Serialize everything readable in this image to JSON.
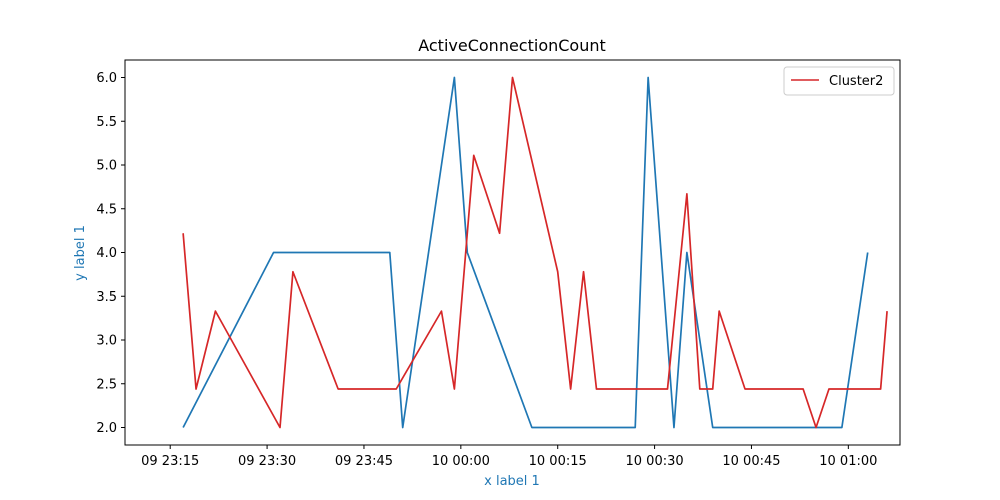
{
  "chart_data": {
    "type": "line",
    "title": "ActiveConnectionCount",
    "xlabel": "x label 1",
    "ylabel": "y label 1",
    "label_color": "#1f77b4",
    "xlim": [
      "09 23:08",
      "10 01:08"
    ],
    "ylim": [
      1.8,
      6.2
    ],
    "x_ticks": [
      {
        "value": "09 23:15",
        "label": "09 23:15"
      },
      {
        "value": "09 23:30",
        "label": "09 23:30"
      },
      {
        "value": "09 23:45",
        "label": "09 23:45"
      },
      {
        "value": "10 00:00",
        "label": "10 00:00"
      },
      {
        "value": "10 00:15",
        "label": "10 00:15"
      },
      {
        "value": "10 00:30",
        "label": "10 00:30"
      },
      {
        "value": "10 00:45",
        "label": "10 00:45"
      },
      {
        "value": "10 01:00",
        "label": "10 01:00"
      }
    ],
    "y_ticks": [
      {
        "value": 2.0,
        "label": "2.0"
      },
      {
        "value": 2.5,
        "label": "2.5"
      },
      {
        "value": 3.0,
        "label": "3.0"
      },
      {
        "value": 3.5,
        "label": "3.5"
      },
      {
        "value": 4.0,
        "label": "4.0"
      },
      {
        "value": 4.5,
        "label": "4.5"
      },
      {
        "value": 5.0,
        "label": "5.0"
      },
      {
        "value": 5.5,
        "label": "5.5"
      },
      {
        "value": 6.0,
        "label": "6.0"
      }
    ],
    "grid": false,
    "legend_position": "top-right",
    "series": [
      {
        "color": "#1f77b4",
        "in_legend": false,
        "points": [
          {
            "x": "09 23:17",
            "y": 2.0
          },
          {
            "x": "09 23:31",
            "y": 4.0
          },
          {
            "x": "09 23:49",
            "y": 4.0
          },
          {
            "x": "09 23:51",
            "y": 2.0
          },
          {
            "x": "09 23:59",
            "y": 6.0
          },
          {
            "x": "10 00:01",
            "y": 4.0
          },
          {
            "x": "10 00:11",
            "y": 2.0
          },
          {
            "x": "10 00:27",
            "y": 2.0
          },
          {
            "x": "10 00:29",
            "y": 6.0
          },
          {
            "x": "10 00:33",
            "y": 2.0
          },
          {
            "x": "10 00:35",
            "y": 4.0
          },
          {
            "x": "10 00:39",
            "y": 2.0
          },
          {
            "x": "10 00:59",
            "y": 2.0
          },
          {
            "x": "10 01:03",
            "y": 4.0
          }
        ]
      },
      {
        "name": "Cluster2",
        "color": "#d62728",
        "in_legend": true,
        "points": [
          {
            "x": "09 23:17",
            "y": 4.22
          },
          {
            "x": "09 23:19",
            "y": 2.44
          },
          {
            "x": "09 23:22",
            "y": 3.33
          },
          {
            "x": "09 23:32",
            "y": 2.0
          },
          {
            "x": "09 23:34",
            "y": 3.78
          },
          {
            "x": "09 23:41",
            "y": 2.44
          },
          {
            "x": "09 23:50",
            "y": 2.44
          },
          {
            "x": "09 23:57",
            "y": 3.33
          },
          {
            "x": "09 23:59",
            "y": 2.44
          },
          {
            "x": "10 00:02",
            "y": 5.11
          },
          {
            "x": "10 00:06",
            "y": 4.22
          },
          {
            "x": "10 00:08",
            "y": 6.0
          },
          {
            "x": "10 00:15",
            "y": 3.78
          },
          {
            "x": "10 00:17",
            "y": 2.44
          },
          {
            "x": "10 00:19",
            "y": 3.78
          },
          {
            "x": "10 00:21",
            "y": 2.44
          },
          {
            "x": "10 00:32",
            "y": 2.44
          },
          {
            "x": "10 00:35",
            "y": 4.67
          },
          {
            "x": "10 00:37",
            "y": 2.44
          },
          {
            "x": "10 00:39",
            "y": 2.44
          },
          {
            "x": "10 00:40",
            "y": 3.33
          },
          {
            "x": "10 00:44",
            "y": 2.44
          },
          {
            "x": "10 00:53",
            "y": 2.44
          },
          {
            "x": "10 00:55",
            "y": 2.0
          },
          {
            "x": "10 00:57",
            "y": 2.44
          },
          {
            "x": "10 01:05",
            "y": 2.44
          },
          {
            "x": "10 01:06",
            "y": 3.33
          }
        ]
      }
    ]
  }
}
